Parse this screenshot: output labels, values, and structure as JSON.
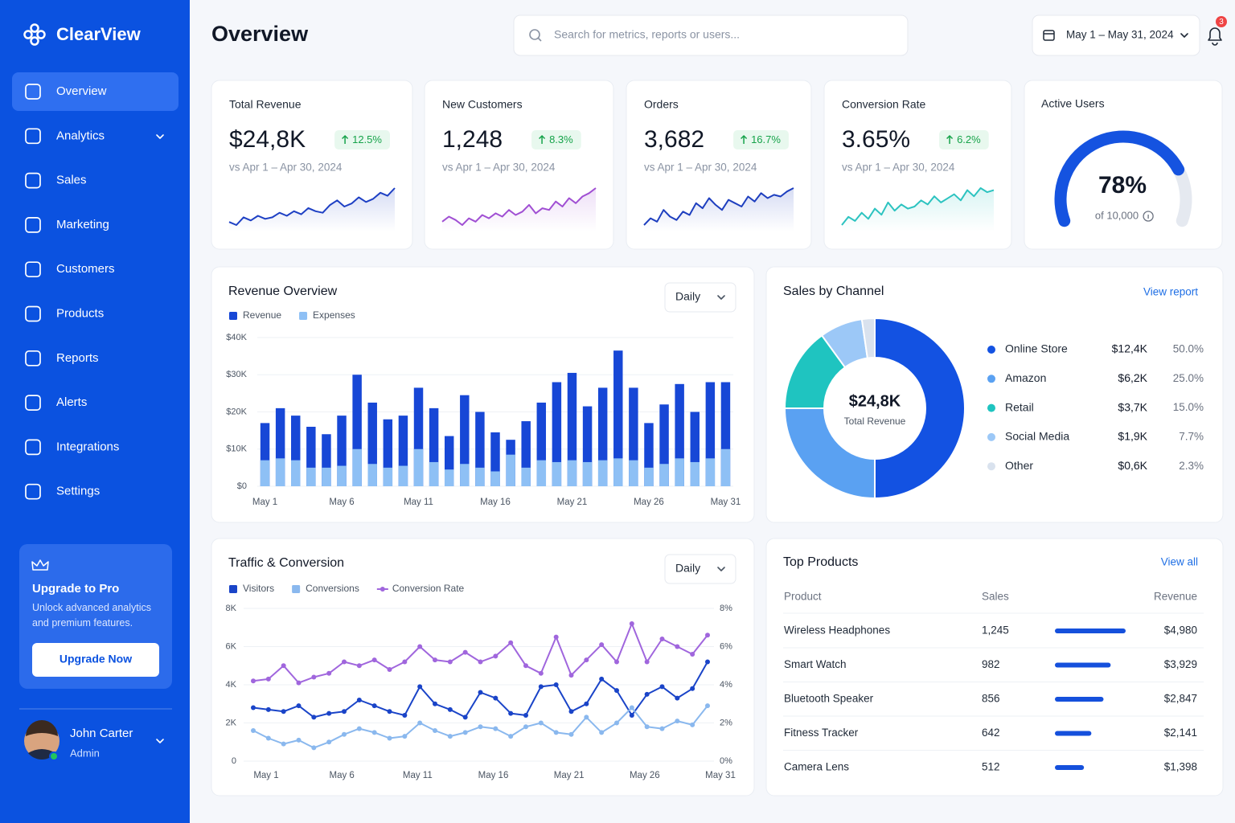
{
  "sidebar": {
    "brand": "ClearView",
    "nav": [
      "Overview",
      "Analytics",
      "Sales",
      "Marketing",
      "Customers",
      "Products",
      "Reports",
      "Alerts",
      "Integrations",
      "Settings"
    ],
    "upgrade": {
      "title": "Upgrade to Pro",
      "text": "Unlock advanced analytics and premium features.",
      "button": "Upgrade Now"
    },
    "user": {
      "name": "John Carter",
      "role": "Admin"
    }
  },
  "header": {
    "title": "Overview",
    "search_placeholder": "Search for metrics, reports or users...",
    "date_range": "May 1 – May 31, 2024",
    "notifications": 3
  },
  "kpis": [
    {
      "title": "Total Revenue",
      "value": "$24,8K",
      "change": "12.5%",
      "comparison": "vs Apr 1 – Apr 30, 2024",
      "color": "#1e40c4",
      "sparkline": [
        5,
        3,
        8,
        6,
        9,
        7,
        8,
        11,
        9,
        12,
        10,
        14,
        12,
        11,
        16,
        19,
        15,
        17,
        21,
        18,
        20,
        24,
        22,
        27
      ]
    },
    {
      "title": "New Customers",
      "value": "1,248",
      "change": "8.3%",
      "comparison": "vs Apr 1 – Apr 30, 2024",
      "color": "#a04fd3",
      "sparkline": [
        6,
        9,
        7,
        4,
        8,
        6,
        10,
        8,
        11,
        9,
        13,
        10,
        12,
        16,
        11,
        14,
        13,
        18,
        15,
        20,
        17,
        21,
        23,
        26
      ]
    },
    {
      "title": "Orders",
      "value": "3,682",
      "change": "16.7%",
      "comparison": "vs Apr 1 – Apr 30, 2024",
      "color": "#1e3fbf",
      "sparkline": [
        4,
        8,
        6,
        13,
        9,
        7,
        12,
        10,
        17,
        14,
        20,
        16,
        13,
        19,
        17,
        15,
        21,
        18,
        23,
        20,
        22,
        21,
        24,
        26
      ]
    },
    {
      "title": "Conversion Rate",
      "value": "3.65%",
      "change": "6.2%",
      "comparison": "vs Apr 1 – Apr 30, 2024",
      "color": "#2cc3c0",
      "sparkline": [
        5,
        9,
        7,
        11,
        8,
        13,
        10,
        16,
        12,
        15,
        13,
        14,
        17,
        15,
        19,
        16,
        18,
        20,
        17,
        22,
        19,
        23,
        21,
        22
      ]
    }
  ],
  "active_users": {
    "type": "gauge",
    "title": "Active Users",
    "value": 78,
    "value_label": "78%",
    "subtitle": "of 10,000",
    "lim": [
      0,
      100
    ],
    "color": "#1553e0"
  },
  "revenue_overview": {
    "type": "bar",
    "title": "Revenue Overview",
    "control": "Daily",
    "categories": [
      "May 1",
      null,
      null,
      null,
      null,
      "May 6",
      null,
      null,
      null,
      null,
      "May 11",
      null,
      null,
      null,
      null,
      "May 16",
      null,
      null,
      null,
      null,
      "May 21",
      null,
      null,
      null,
      null,
      "May 26",
      null,
      null,
      null,
      null,
      "May 31"
    ],
    "series": [
      {
        "name": "Revenue",
        "color": "#1747d6",
        "values": [
          17000,
          21000,
          19000,
          16000,
          14000,
          19000,
          30000,
          22500,
          18000,
          19000,
          26500,
          21000,
          13500,
          24500,
          20000,
          14500,
          12500,
          17500,
          22500,
          28000,
          30500,
          21500,
          26500,
          36500,
          26500,
          17000,
          22000,
          27500,
          20000,
          28000,
          28000
        ]
      },
      {
        "name": "Expenses",
        "color": "#8ec0f5",
        "values": [
          7000,
          7500,
          7000,
          5000,
          5000,
          5500,
          10000,
          6000,
          5000,
          5500,
          10000,
          6500,
          4500,
          6000,
          5000,
          4000,
          8500,
          5000,
          7000,
          6500,
          7000,
          6500,
          7000,
          7500,
          7000,
          5000,
          6000,
          7500,
          6500,
          7500,
          10000
        ]
      }
    ],
    "ylim": [
      0,
      40000
    ],
    "yticks": [
      {
        "value": 0,
        "label": "$0"
      },
      {
        "value": 10000,
        "label": "$10K"
      },
      {
        "value": 20000,
        "label": "$20K"
      },
      {
        "value": 30000,
        "label": "$30K"
      },
      {
        "value": 40000,
        "label": "$40K"
      }
    ],
    "grid": true
  },
  "sales_by_channel": {
    "type": "pie",
    "title": "Sales by Channel",
    "link": "View report",
    "center_value": "$24,8K",
    "center_label": "Total Revenue",
    "categories": [
      "Online Store",
      "Amazon",
      "Retail",
      "Social Media",
      "Other"
    ],
    "values": [
      50.0,
      25.0,
      15.0,
      7.7,
      2.3
    ],
    "value_labels": [
      "50.0%",
      "25.0%",
      "15.0%",
      "7.7%",
      "2.3%"
    ],
    "amounts": [
      "$12,4K",
      "$6,2K",
      "$3,7K",
      "$1,9K",
      "$0,6K"
    ],
    "colors": [
      "#1352e2",
      "#5aa1f2",
      "#1fc4c0",
      "#9cc8f7",
      "#d9e2ee"
    ]
  },
  "traffic_conversion": {
    "type": "line",
    "title": "Traffic & Conversion",
    "control": "Daily",
    "categories": [
      "May 1",
      null,
      null,
      null,
      null,
      "May 6",
      null,
      null,
      null,
      null,
      "May 11",
      null,
      null,
      null,
      null,
      "May 16",
      null,
      null,
      null,
      null,
      "May 21",
      null,
      null,
      null,
      null,
      "May 26",
      null,
      null,
      null,
      null,
      "May 31"
    ],
    "series": [
      {
        "name": "Visitors",
        "color": "#1a44c8",
        "values": [
          2800,
          2700,
          2600,
          2900,
          2300,
          2500,
          2600,
          3200,
          2900,
          2600,
          2400,
          3900,
          3000,
          2700,
          2300,
          3600,
          3300,
          2500,
          2400,
          3900,
          4000,
          2600,
          3000,
          4300,
          3700,
          2400,
          3500,
          3900,
          3300,
          3800,
          5200
        ]
      },
      {
        "name": "Conversions",
        "color": "#8ab8ee",
        "values": [
          1600,
          1200,
          900,
          1100,
          700,
          1000,
          1400,
          1700,
          1500,
          1200,
          1300,
          2000,
          1600,
          1300,
          1500,
          1800,
          1700,
          1300,
          1800,
          2000,
          1500,
          1400,
          2300,
          1500,
          2000,
          2800,
          1800,
          1700,
          2100,
          1900,
          2900
        ]
      },
      {
        "name": "Conversion Rate",
        "color": "#a066dd",
        "axis": "y2",
        "values": [
          4.2,
          4.3,
          5.0,
          4.1,
          4.4,
          4.6,
          5.2,
          5.0,
          5.3,
          4.8,
          5.2,
          6.0,
          5.3,
          5.2,
          5.7,
          5.2,
          5.5,
          6.2,
          5.0,
          4.6,
          6.5,
          4.5,
          5.3,
          6.1,
          5.2,
          7.2,
          5.2,
          6.4,
          6.0,
          5.6,
          6.6
        ]
      }
    ],
    "ylim": [
      0,
      8000
    ],
    "yticks": [
      0,
      {
        "value": 2000,
        "label": "2K"
      },
      {
        "value": 4000,
        "label": "4K"
      },
      {
        "value": 6000,
        "label": "6K"
      },
      {
        "value": 8000,
        "label": "8K"
      }
    ],
    "y2lim": [
      0,
      8
    ],
    "y2ticks": [
      {
        "value": 0,
        "label": "0%"
      },
      {
        "value": 2,
        "label": "2%"
      },
      {
        "value": 4,
        "label": "4%"
      },
      {
        "value": 6,
        "label": "6%"
      },
      {
        "value": 8,
        "label": "8%"
      }
    ],
    "grid": true
  },
  "top_products": {
    "title": "Top Products",
    "link": "View all",
    "columns": [
      "Product",
      "Sales",
      "Revenue"
    ],
    "products": [
      "Wireless Headphones",
      "Smart Watch",
      "Bluetooth Speaker",
      "Fitness Tracker",
      "Camera Lens"
    ],
    "values": [
      1245,
      982,
      856,
      642,
      512
    ],
    "value_labels": [
      "1,245",
      "982",
      "856",
      "642",
      "512"
    ],
    "revenue": [
      "$4,980",
      "$3,929",
      "$2,847",
      "$2,141",
      "$1,398"
    ],
    "color": "#1550dc"
  }
}
